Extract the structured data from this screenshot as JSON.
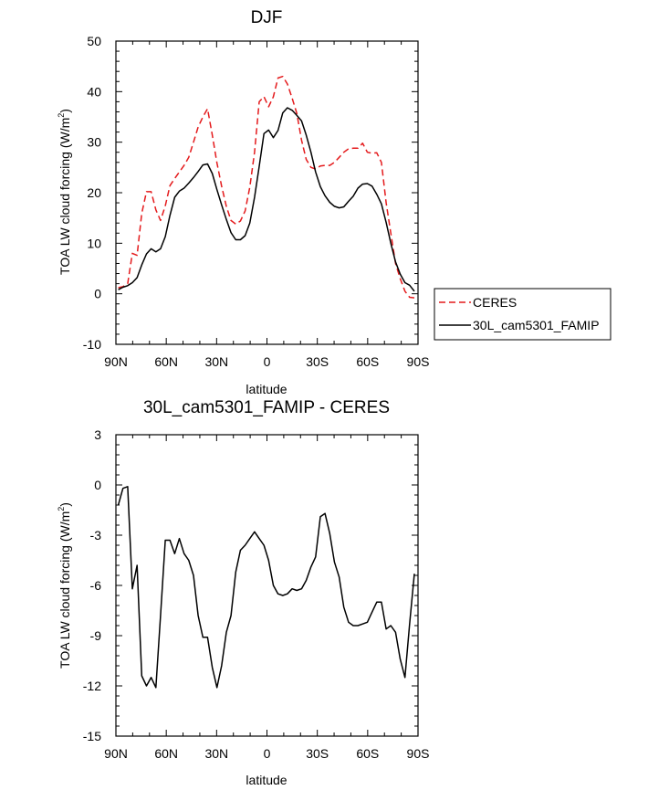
{
  "chart_data": [
    {
      "type": "line",
      "title": "DJF",
      "xlabel": "latitude",
      "ylabel_main": "TOA LW cloud forcing (W/m",
      "ylabel_sup": "2",
      "ylabel_close": ")",
      "xlim": [
        90,
        -90
      ],
      "ylim": [
        -10,
        50
      ],
      "xticks": [
        90,
        60,
        30,
        0,
        -30,
        -60,
        -90
      ],
      "xtick_labels": [
        "90N",
        "60N",
        "30N",
        "0",
        "30S",
        "60S",
        "90S"
      ],
      "yticks": [
        -10,
        0,
        10,
        20,
        30,
        40,
        50
      ],
      "ytick_labels": [
        "-10",
        "0",
        "10",
        "20",
        "30",
        "40",
        "50"
      ],
      "legend_position": "right",
      "series": [
        {
          "name": "CERES",
          "color": "#e41a1c",
          "dash": "dashed",
          "x": [
            88.6,
            85.8,
            83,
            80.2,
            77.4,
            74.6,
            71.8,
            69,
            66.2,
            63.4,
            60.6,
            57.8,
            55,
            52.2,
            49.4,
            46.6,
            43.8,
            41,
            38.2,
            35.4,
            32.6,
            29.8,
            27,
            24.2,
            21.4,
            18.6,
            15.8,
            13,
            10.2,
            7.4,
            4.6,
            1.8,
            -1,
            -3.8,
            -6.6,
            -9.4,
            -12.2,
            -15,
            -17.8,
            -20.6,
            -23.4,
            -26.2,
            -29,
            -31.8,
            -34.6,
            -37.4,
            -40.2,
            -43,
            -45.8,
            -48.6,
            -51.4,
            -54.2,
            -57,
            -59.8,
            -62.6,
            -65.4,
            -68.2,
            -71,
            -73.8,
            -76.6,
            -79.4,
            -82.2,
            -85,
            -87.8
          ],
          "y": [
            1.2,
            1.4,
            2,
            8,
            7.6,
            15.9,
            20.2,
            20.2,
            16.6,
            14.5,
            17.4,
            21.4,
            22.8,
            24.1,
            25.4,
            27,
            30,
            33,
            35,
            36.6,
            31.4,
            25.9,
            21.3,
            17.3,
            14.5,
            13.8,
            14.4,
            16.4,
            21.1,
            28,
            38,
            39,
            37,
            39,
            42.7,
            43,
            41.5,
            38.7,
            35.7,
            30.4,
            26.6,
            25,
            24.7,
            25.3,
            25.4,
            25.4,
            26,
            27,
            28,
            28.7,
            28.8,
            28.8,
            29.8,
            28,
            27.8,
            27.9,
            26,
            18,
            12,
            6,
            3,
            0.5,
            -0.7,
            -0.8
          ]
        },
        {
          "name": "30L_cam5301_FAMIP",
          "color": "#000000",
          "dash": "solid",
          "x": [
            88.6,
            85.8,
            83,
            80.2,
            77.4,
            74.6,
            71.8,
            69,
            66.2,
            63.4,
            60.6,
            57.8,
            55,
            52.2,
            49.4,
            46.6,
            43.8,
            41,
            38.2,
            35.4,
            32.6,
            29.8,
            27,
            24.2,
            21.4,
            18.6,
            15.8,
            13,
            10.2,
            7.4,
            4.6,
            1.8,
            -1,
            -3.8,
            -6.6,
            -9.4,
            -12.2,
            -15,
            -17.8,
            -20.6,
            -23.4,
            -26.2,
            -29,
            -31.8,
            -34.6,
            -37.4,
            -40.2,
            -43,
            -45.8,
            -48.6,
            -51.4,
            -54.2,
            -57,
            -59.8,
            -62.6,
            -65.4,
            -68.2,
            -71,
            -73.8,
            -76.6,
            -79.4,
            -82.2,
            -85,
            -87.8
          ],
          "y": [
            0.8,
            1.3,
            1.6,
            2.2,
            3.2,
            5.7,
            7.9,
            8.9,
            8.3,
            8.9,
            11.3,
            15.5,
            19.1,
            20.3,
            20.9,
            21.9,
            23,
            24.2,
            25.5,
            25.7,
            23.8,
            20.6,
            17.6,
            14.7,
            12.1,
            10.7,
            10.7,
            11.5,
            14,
            19.1,
            25.2,
            31.7,
            32.4,
            30.9,
            32.3,
            35.8,
            36.8,
            36.3,
            35.3,
            34.2,
            31.4,
            28,
            24.1,
            21.2,
            19.4,
            18.1,
            17.3,
            17,
            17.2,
            18.3,
            19.3,
            20.9,
            21.7,
            21.8,
            21.3,
            19.7,
            17.8,
            14.1,
            10,
            6.3,
            3.9,
            2.2,
            1.7,
            0.5
          ]
        }
      ]
    },
    {
      "type": "line",
      "title": "30L_cam5301_FAMIP - CERES",
      "xlabel": "latitude",
      "ylabel_main": "TOA LW cloud forcing (W/m",
      "ylabel_sup": "2",
      "ylabel_close": ")",
      "xlim": [
        90,
        -90
      ],
      "ylim": [
        -15,
        3
      ],
      "xticks": [
        90,
        60,
        30,
        0,
        -30,
        -60,
        -90
      ],
      "xtick_labels": [
        "90N",
        "60N",
        "30N",
        "0",
        "30S",
        "60S",
        "90S"
      ],
      "yticks": [
        -15,
        -12,
        -9,
        -6,
        -3,
        0,
        3
      ],
      "ytick_labels": [
        "-15",
        "-12",
        "-9",
        "-6",
        "-3",
        "0",
        "3"
      ],
      "series": [
        {
          "name": "",
          "color": "#000000",
          "dash": "solid",
          "x": [
            88.6,
            85.8,
            83,
            80.2,
            77.4,
            74.6,
            71.8,
            69,
            66.2,
            63.4,
            60.6,
            57.8,
            55,
            52.2,
            49.4,
            46.6,
            43.8,
            41,
            38.2,
            35.4,
            32.6,
            29.8,
            27,
            24.2,
            21.4,
            18.6,
            15.8,
            13,
            10.2,
            7.4,
            4.6,
            1.8,
            -1,
            -3.8,
            -6.6,
            -9.4,
            -12.2,
            -15,
            -17.8,
            -20.6,
            -23.4,
            -26.2,
            -29,
            -31.8,
            -34.6,
            -37.4,
            -40.2,
            -43,
            -45.8,
            -48.6,
            -51.4,
            -54.2,
            -57,
            -59.8,
            -62.6,
            -65.4,
            -68.2,
            -71,
            -73.8,
            -76.6,
            -79.4,
            -82.2,
            -85,
            -87.8
          ],
          "y": [
            -1.2,
            -0.2,
            -0.1,
            -6.2,
            -4.8,
            -11.4,
            -12,
            -11.5,
            -12.1,
            -7.8,
            -3.3,
            -3.3,
            -4.1,
            -3.2,
            -4.1,
            -4.5,
            -5.4,
            -7.8,
            -9.1,
            -9.1,
            -10.9,
            -12.1,
            -10.8,
            -8.8,
            -7.8,
            -5.2,
            -3.9,
            -3.6,
            -3.2,
            -2.8,
            -3.2,
            -3.6,
            -4.5,
            -6,
            -6.5,
            -6.6,
            -6.5,
            -6.2,
            -6.3,
            -6.2,
            -5.7,
            -4.9,
            -4.3,
            -1.9,
            -1.7,
            -2.9,
            -4.6,
            -5.5,
            -7.3,
            -8.2,
            -8.4,
            -8.4,
            -8.3,
            -8.2,
            -7.6,
            -7,
            -7,
            -8.6,
            -8.4,
            -8.8,
            -10.4,
            -11.5,
            -8.3,
            -5.3
          ]
        }
      ]
    }
  ]
}
